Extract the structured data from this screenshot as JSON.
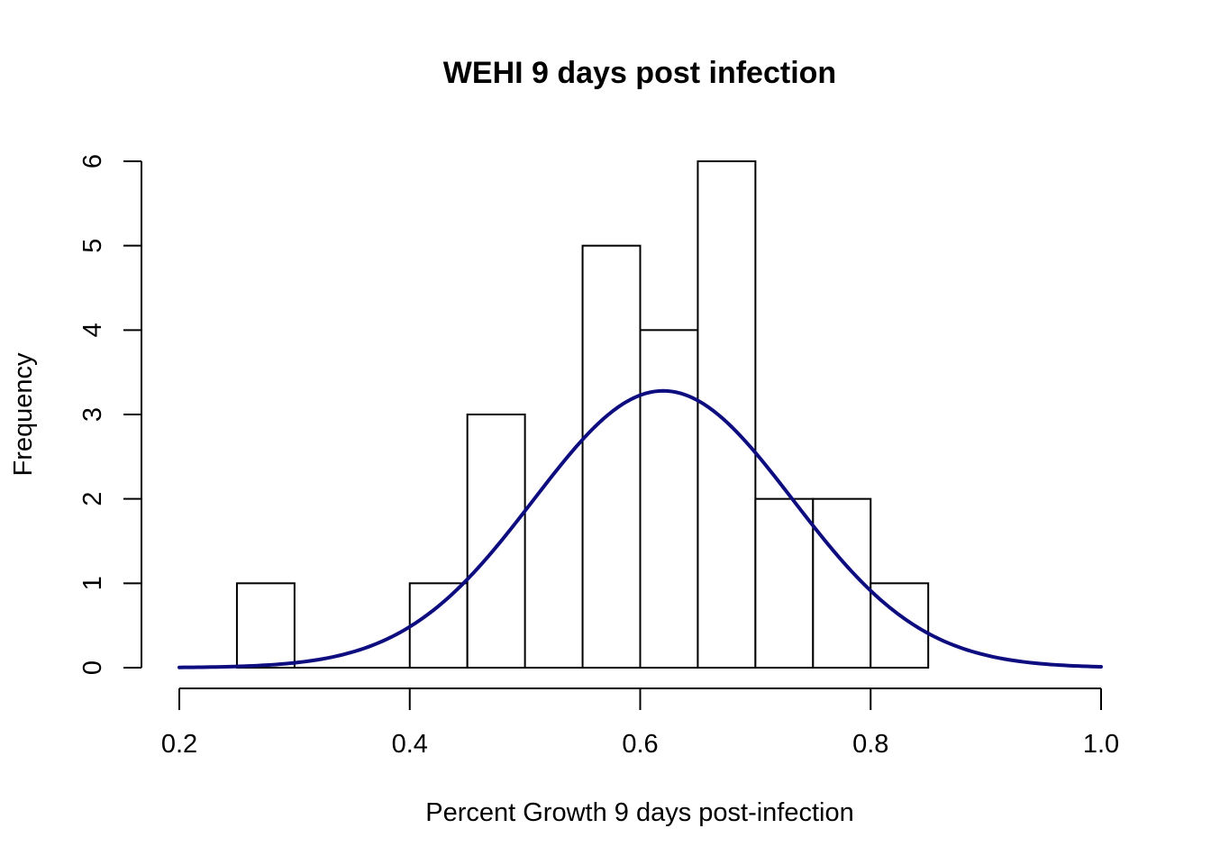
{
  "chart_data": {
    "type": "bar",
    "subtype": "histogram",
    "title": "WEHI 9 days post infection",
    "xlabel": "Percent Growth 9 days post-infection",
    "ylabel": "Frequency",
    "xlim": [
      0.2,
      1.0
    ],
    "ylim": [
      0,
      6
    ],
    "x_ticks": [
      "0.2",
      "0.4",
      "0.6",
      "0.8",
      "1.0"
    ],
    "y_ticks": [
      "0",
      "1",
      "2",
      "3",
      "4",
      "5",
      "6"
    ],
    "grid": false,
    "bins": [
      {
        "from": 0.25,
        "to": 0.3,
        "count": 1
      },
      {
        "from": 0.3,
        "to": 0.35,
        "count": 0
      },
      {
        "from": 0.35,
        "to": 0.4,
        "count": 0
      },
      {
        "from": 0.4,
        "to": 0.45,
        "count": 1
      },
      {
        "from": 0.45,
        "to": 0.5,
        "count": 3
      },
      {
        "from": 0.5,
        "to": 0.55,
        "count": 0
      },
      {
        "from": 0.55,
        "to": 0.6,
        "count": 5
      },
      {
        "from": 0.6,
        "to": 0.65,
        "count": 4
      },
      {
        "from": 0.65,
        "to": 0.7,
        "count": 6
      },
      {
        "from": 0.7,
        "to": 0.75,
        "count": 2
      },
      {
        "from": 0.75,
        "to": 0.8,
        "count": 2
      },
      {
        "from": 0.8,
        "to": 0.85,
        "count": 1
      }
    ],
    "curve": {
      "type": "normal-density",
      "mean": 0.62,
      "sd": 0.1125,
      "peak": 3.28,
      "x_range": [
        0.2,
        1.0
      ],
      "color": "#0d0d80"
    },
    "bar_fill": "#ffffff",
    "bar_stroke": "#000000"
  }
}
